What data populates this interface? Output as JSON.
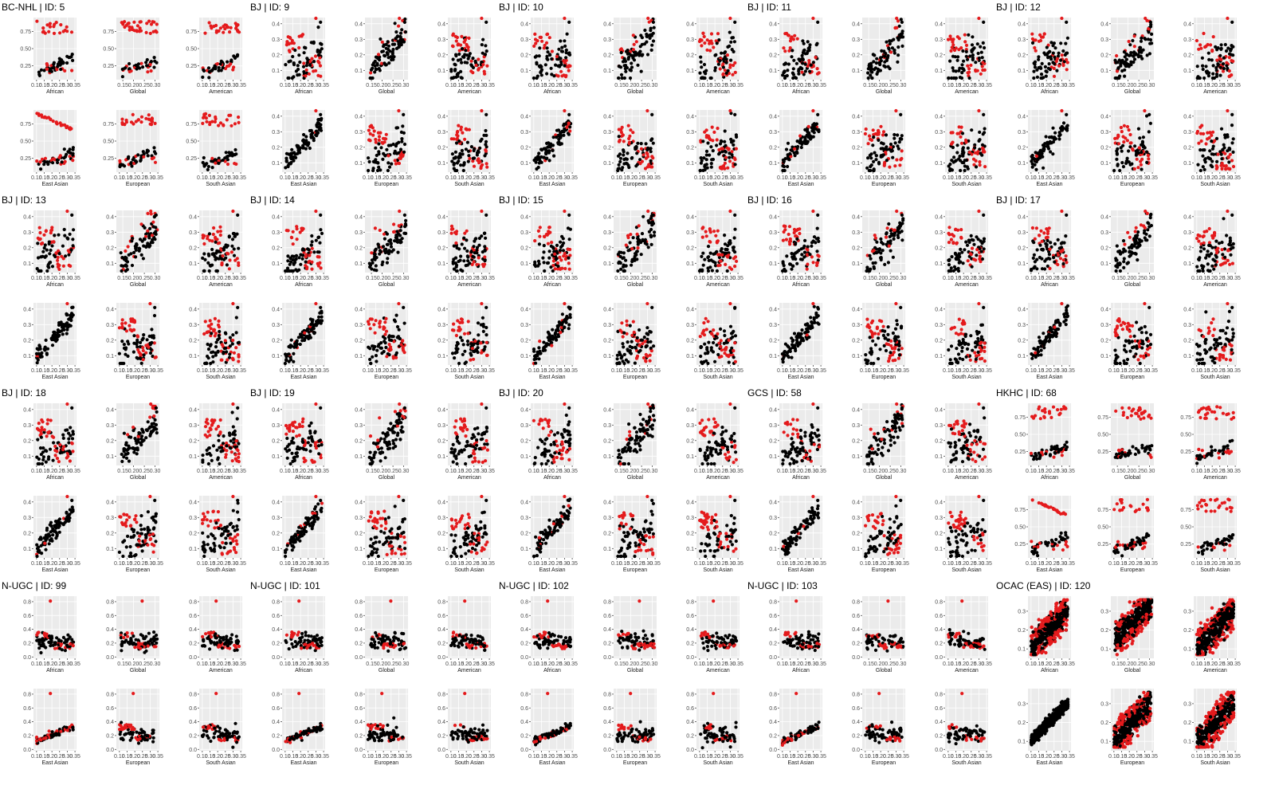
{
  "chart_data": {
    "type": "scatter",
    "layout": "faceted small multiples, 5 columns x 4 rows of study blocks, each block with 6 panels (2 rows x 3 columns)",
    "panel_background": "#EBEBEB",
    "gridline_color": "#FFFFFF",
    "series_colors": {
      "highlight": "#E41A1C",
      "base": "#000000"
    },
    "panel_xlabels_top": [
      "African",
      "Global",
      "American"
    ],
    "panel_xlabels_bottom": [
      "East Asian",
      "European",
      "South Asian"
    ],
    "studies": [
      {
        "title": "BC-NHL | ID: 5",
        "style": "bimodal",
        "ylim": [
          0.05,
          0.95
        ],
        "yticks": [
          "0.25",
          "0.50",
          "0.75"
        ],
        "ytick_values": [
          0.25,
          0.5,
          0.75
        ]
      },
      {
        "title": "BJ | ID: 9",
        "style": "standard",
        "ylim": [
          0.04,
          0.44
        ],
        "yticks": [
          "0.1",
          "0.2",
          "0.3",
          "0.4"
        ],
        "ytick_values": [
          0.1,
          0.2,
          0.3,
          0.4
        ]
      },
      {
        "title": "BJ | ID: 10",
        "style": "standard",
        "ylim": [
          0.04,
          0.44
        ],
        "yticks": [
          "0.1",
          "0.2",
          "0.3",
          "0.4"
        ],
        "ytick_values": [
          0.1,
          0.2,
          0.3,
          0.4
        ]
      },
      {
        "title": "BJ | ID: 11",
        "style": "standard",
        "ylim": [
          0.04,
          0.44
        ],
        "yticks": [
          "0.1",
          "0.2",
          "0.3",
          "0.4"
        ],
        "ytick_values": [
          0.1,
          0.2,
          0.3,
          0.4
        ]
      },
      {
        "title": "BJ | ID: 12",
        "style": "standard",
        "ylim": [
          0.04,
          0.44
        ],
        "yticks": [
          "0.1",
          "0.2",
          "0.3",
          "0.4"
        ],
        "ytick_values": [
          0.1,
          0.2,
          0.3,
          0.4
        ]
      },
      {
        "title": "BJ | ID: 13",
        "style": "standard",
        "ylim": [
          0.04,
          0.44
        ],
        "yticks": [
          "0.1",
          "0.2",
          "0.3",
          "0.4"
        ],
        "ytick_values": [
          0.1,
          0.2,
          0.3,
          0.4
        ]
      },
      {
        "title": "BJ | ID: 14",
        "style": "standard",
        "ylim": [
          0.04,
          0.44
        ],
        "yticks": [
          "0.1",
          "0.2",
          "0.3",
          "0.4"
        ],
        "ytick_values": [
          0.1,
          0.2,
          0.3,
          0.4
        ]
      },
      {
        "title": "BJ | ID: 15",
        "style": "standard",
        "ylim": [
          0.04,
          0.44
        ],
        "yticks": [
          "0.1",
          "0.2",
          "0.3",
          "0.4"
        ],
        "ytick_values": [
          0.1,
          0.2,
          0.3,
          0.4
        ]
      },
      {
        "title": "BJ | ID: 16",
        "style": "standard",
        "ylim": [
          0.04,
          0.44
        ],
        "yticks": [
          "0.1",
          "0.2",
          "0.3",
          "0.4"
        ],
        "ytick_values": [
          0.1,
          0.2,
          0.3,
          0.4
        ]
      },
      {
        "title": "BJ | ID: 17",
        "style": "standard",
        "ylim": [
          0.04,
          0.44
        ],
        "yticks": [
          "0.1",
          "0.2",
          "0.3",
          "0.4"
        ],
        "ytick_values": [
          0.1,
          0.2,
          0.3,
          0.4
        ]
      },
      {
        "title": "BJ | ID: 18",
        "style": "standard",
        "ylim": [
          0.04,
          0.44
        ],
        "yticks": [
          "0.1",
          "0.2",
          "0.3",
          "0.4"
        ],
        "ytick_values": [
          0.1,
          0.2,
          0.3,
          0.4
        ]
      },
      {
        "title": "BJ | ID: 19",
        "style": "standard",
        "ylim": [
          0.04,
          0.44
        ],
        "yticks": [
          "0.1",
          "0.2",
          "0.3",
          "0.4"
        ],
        "ytick_values": [
          0.1,
          0.2,
          0.3,
          0.4
        ]
      },
      {
        "title": "BJ | ID: 20",
        "style": "standard",
        "ylim": [
          0.04,
          0.44
        ],
        "yticks": [
          "0.1",
          "0.2",
          "0.3",
          "0.4"
        ],
        "ytick_values": [
          0.1,
          0.2,
          0.3,
          0.4
        ]
      },
      {
        "title": "GCS | ID: 58",
        "style": "standard",
        "ylim": [
          0.04,
          0.44
        ],
        "yticks": [
          "0.1",
          "0.2",
          "0.3",
          "0.4"
        ],
        "ytick_values": [
          0.1,
          0.2,
          0.3,
          0.4
        ]
      },
      {
        "title": "HKHC | ID: 68",
        "style": "bimodal",
        "ylim": [
          0.05,
          0.95
        ],
        "yticks": [
          "0.25",
          "0.50",
          "0.75"
        ],
        "ytick_values": [
          0.25,
          0.5,
          0.75
        ]
      },
      {
        "title": "N-UGC | ID: 99",
        "style": "outlier",
        "ylim": [
          -0.02,
          0.88
        ],
        "yticks": [
          "0.0",
          "0.2",
          "0.4",
          "0.6",
          "0.8"
        ],
        "ytick_values": [
          0.0,
          0.2,
          0.4,
          0.6,
          0.8
        ]
      },
      {
        "title": "N-UGC | ID: 101",
        "style": "outlier",
        "ylim": [
          -0.02,
          0.88
        ],
        "yticks": [
          "0.0",
          "0.2",
          "0.4",
          "0.6",
          "0.8"
        ],
        "ytick_values": [
          0.0,
          0.2,
          0.4,
          0.6,
          0.8
        ]
      },
      {
        "title": "N-UGC | ID: 102",
        "style": "outlier",
        "ylim": [
          -0.02,
          0.88
        ],
        "yticks": [
          "0.0",
          "0.2",
          "0.4",
          "0.6",
          "0.8"
        ],
        "ytick_values": [
          0.0,
          0.2,
          0.4,
          0.6,
          0.8
        ]
      },
      {
        "title": "N-UGC | ID: 103",
        "style": "outlier",
        "ylim": [
          -0.02,
          0.88
        ],
        "yticks": [
          "0.0",
          "0.2",
          "0.4",
          "0.6",
          "0.8"
        ],
        "ytick_values": [
          0.0,
          0.2,
          0.4,
          0.6,
          0.8
        ]
      },
      {
        "title": "OCAC (EAS) | ID: 120",
        "style": "dense",
        "ylim": [
          0.05,
          0.38
        ],
        "yticks": [
          "0.1",
          "0.2",
          "0.3"
        ],
        "ytick_values": [
          0.1,
          0.2,
          0.3
        ]
      }
    ],
    "x_axis_default": {
      "xlim": [
        0.08,
        0.36
      ],
      "ticks": [
        "0.10",
        "0.15",
        "0.20",
        "0.25",
        "0.30",
        "0.35"
      ],
      "tick_values": [
        0.1,
        0.15,
        0.2,
        0.25,
        0.3,
        0.35
      ]
    },
    "x_axis_global": {
      "xlim": [
        0.12,
        0.32
      ],
      "ticks": [
        "0.15",
        "0.20",
        "0.25",
        "0.30"
      ],
      "tick_values": [
        0.15,
        0.2,
        0.25,
        0.3
      ]
    }
  }
}
